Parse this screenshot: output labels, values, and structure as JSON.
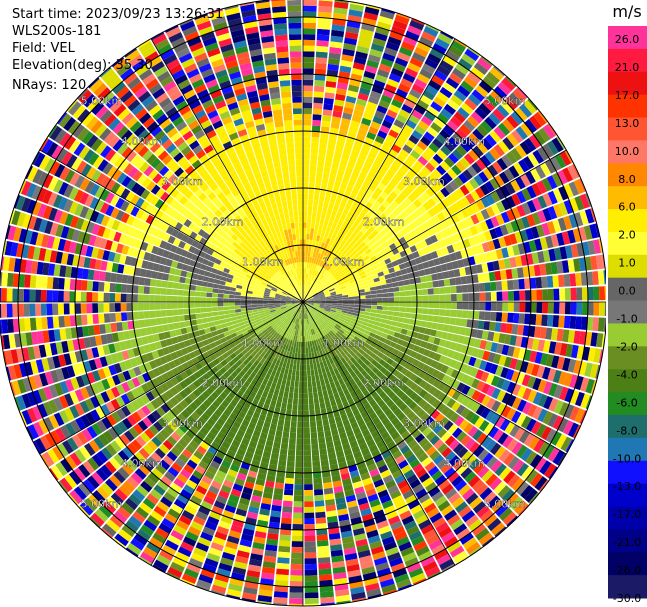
{
  "info": {
    "start_time": "Start time: 2023/09/23 13:26:31",
    "site": "WLS200s-181",
    "field": "Field: VEL",
    "elevation": "Elevation(deg): 35.30",
    "nrays": "NRays: 120"
  },
  "chart_data": {
    "type": "heatmap",
    "projection": "polar-ppi",
    "field": "VEL",
    "site": "WLS200s-181",
    "start_time": "2023/09/23 13:26:31",
    "elevation_deg": 35.3,
    "n_rays": 120,
    "range_rings": [
      {
        "label": "1.00km",
        "range_km": 1.0
      },
      {
        "label": "2.00km",
        "range_km": 2.0
      },
      {
        "label": "3.00km",
        "range_km": 3.0
      },
      {
        "label": "4.00km",
        "range_km": 4.0
      },
      {
        "label": "5.00km",
        "range_km": 5.0
      }
    ],
    "ring_label_azimuths_deg": [
      45,
      135,
      225,
      315
    ],
    "radial_line_azimuths_deg": [
      0,
      30,
      60,
      90,
      120,
      150,
      180,
      210,
      240,
      270,
      300,
      330
    ],
    "max_range_km": 5.4,
    "colorbar": {
      "unit": "m/s",
      "ticks": [
        "26.0",
        "21.0",
        "17.0",
        "13.0",
        "10.0",
        "8.0",
        "6.0",
        "2.0",
        "1.0",
        "0.0",
        "-1.0",
        "-2.0",
        "-4.0",
        "-6.0",
        "-8.0",
        "-10.0",
        "-13.0",
        "-17.0",
        "-21.0",
        "-26.0",
        "-30.0"
      ],
      "colors": [
        "#ff3399",
        "#ff1a40",
        "#ee1111",
        "#ff3300",
        "#ff5533",
        "#ff7766",
        "#ff8800",
        "#ffbb00",
        "#ffee00",
        "#ffff33",
        "#dddd00",
        "#666666",
        "#777777",
        "#99cc33",
        "#6b8e23",
        "#4d7f17",
        "#228b22",
        "#1e6e6e",
        "#1f77b4",
        "#1010ff",
        "#0000cc",
        "#0000aa",
        "#000088",
        "#000066",
        "#1a1a66"
      ]
    },
    "pattern": {
      "near_positive_azimuth_deg": 0,
      "near_negative_azimuth_deg": 180,
      "clean_range_km": 3.0,
      "noise_start_km": 3.4
    }
  }
}
